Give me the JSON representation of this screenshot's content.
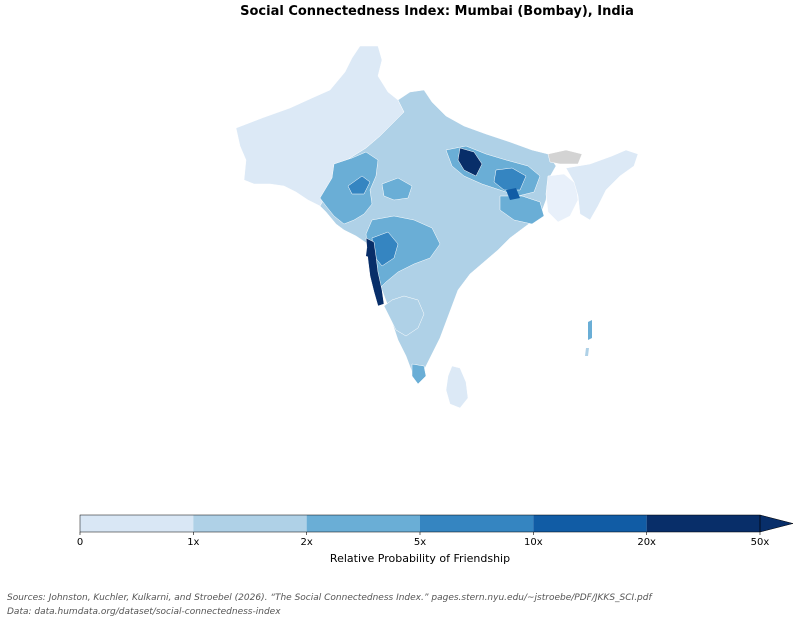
{
  "title": "Social Connectedness Index: Mumbai (Bombay), India",
  "legend": {
    "label": "Relative Probability of Friendship",
    "ticks": [
      "0",
      "1x",
      "2x",
      "5x",
      "10x",
      "20x",
      "50x"
    ],
    "bins": [
      {
        "range": "0–1x",
        "color": "#d9e7f5"
      },
      {
        "range": "1x–2x",
        "color": "#afd1e7"
      },
      {
        "range": "2x–5x",
        "color": "#6aaed6"
      },
      {
        "range": "5x–10x",
        "color": "#3585c1"
      },
      {
        "range": "10x–20x",
        "color": "#115ca5"
      },
      {
        "range": "20x–50x",
        "color": "#082e69"
      }
    ],
    "extend": "max"
  },
  "sources": {
    "line1": "Sources: Johnston, Kuchler, Kulkarni, and Stroebel (2026). “The Social Connectedness Index.” pages.stern.nyu.edu/~jstroebe/PDF/JKKS_SCI.pdf",
    "line2": "Data: data.humdata.org/dataset/social-connectedness-index"
  },
  "map": {
    "subject_region": "Mumbai (Bombay), India",
    "base_color": "#dce9f6",
    "no_data_color": "#d3d3d3",
    "highlight_regions": [
      {
        "name": "Maharashtra coast (Konkan)",
        "color": "#082e69"
      },
      {
        "name": "Maharashtra interior",
        "color": "#6aaed6"
      },
      {
        "name": "Gujarat",
        "color": "#6aaed6"
      },
      {
        "name": "Uttar Pradesh east",
        "color": "#3585c1"
      },
      {
        "name": "Bihar",
        "color": "#6aaed6"
      },
      {
        "name": "Karnataka / Goa",
        "color": "#afd1e7"
      }
    ]
  }
}
